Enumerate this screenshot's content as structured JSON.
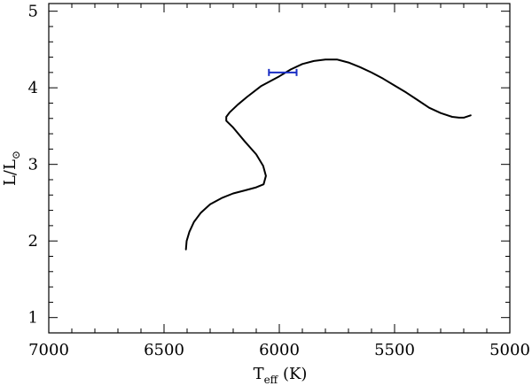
{
  "chart_data": {
    "type": "line",
    "title": "",
    "xlabel": {
      "main": "T",
      "sub": "eff",
      "rest": " (K)"
    },
    "ylabel": {
      "main": "L/L",
      "sun_symbol": "⊙"
    },
    "xlim": [
      7000,
      5000
    ],
    "ylim": [
      0.8,
      5.1
    ],
    "x_ticks": [
      7000,
      6500,
      6000,
      5500,
      5000
    ],
    "y_ticks": [
      1,
      2,
      3,
      4,
      5
    ],
    "grid": false,
    "series": [
      {
        "color": "#000000",
        "x": [
          6405,
          6402,
          6390,
          6370,
          6340,
          6300,
          6250,
          6200,
          6150,
          6100,
          6068,
          6058,
          6070,
          6100,
          6150,
          6200,
          6230,
          6230,
          6215,
          6180,
          6140,
          6080,
          6000,
          5950,
          5900,
          5850,
          5800,
          5750,
          5700,
          5650,
          5600,
          5550,
          5500,
          5450,
          5400,
          5350,
          5300,
          5250,
          5220,
          5200,
          5170
        ],
        "y": [
          1.89,
          2.0,
          2.12,
          2.25,
          2.37,
          2.48,
          2.56,
          2.62,
          2.66,
          2.7,
          2.74,
          2.85,
          2.98,
          3.13,
          3.3,
          3.48,
          3.57,
          3.62,
          3.68,
          3.78,
          3.88,
          4.02,
          4.15,
          4.24,
          4.31,
          4.35,
          4.37,
          4.37,
          4.33,
          4.27,
          4.2,
          4.12,
          4.03,
          3.94,
          3.84,
          3.74,
          3.67,
          3.62,
          3.61,
          3.61,
          3.64
        ]
      }
    ],
    "error_bars": [
      {
        "color": "#1a2ec4",
        "x": 5985,
        "xerr": 60,
        "y": 4.2
      }
    ]
  }
}
